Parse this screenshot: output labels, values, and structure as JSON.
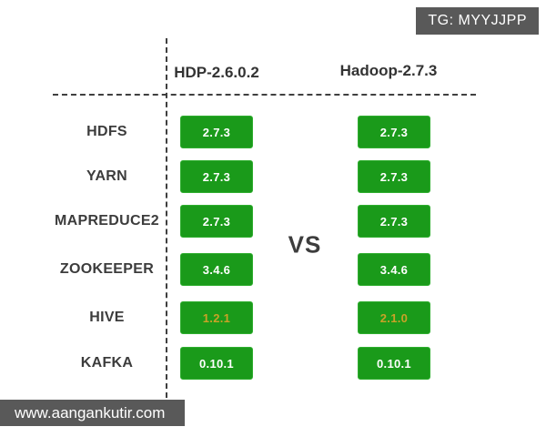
{
  "watermark": {
    "tag": "TG: MYYJJPP",
    "website": "www.aangankutir.com",
    "bg_color": "#595959"
  },
  "comparison": {
    "left_header": "HDP-2.6.0.2",
    "right_header": "Hadoop-2.7.3",
    "vs_label": "VS",
    "rows": [
      {
        "label": "HDFS",
        "left": "2.7.3",
        "right": "2.7.3",
        "highlight": false
      },
      {
        "label": "YARN",
        "left": "2.7.3",
        "right": "2.7.3",
        "highlight": false
      },
      {
        "label": "MAPREDUCE2",
        "left": "2.7.3",
        "right": "2.7.3",
        "highlight": false
      },
      {
        "label": "ZOOKEEPER",
        "left": "3.4.6",
        "right": "3.4.6",
        "highlight": false
      },
      {
        "label": "HIVE",
        "left": "1.2.1",
        "right": "2.1.0",
        "highlight": true
      },
      {
        "label": "KAFKA",
        "left": "0.10.1",
        "right": "0.10.1",
        "highlight": false
      }
    ],
    "colors": {
      "badge_green": "#1a9a1a",
      "badge_text": "#ffffff",
      "highlight_text": "#c9a227",
      "divider": "#3f3f3f"
    }
  }
}
